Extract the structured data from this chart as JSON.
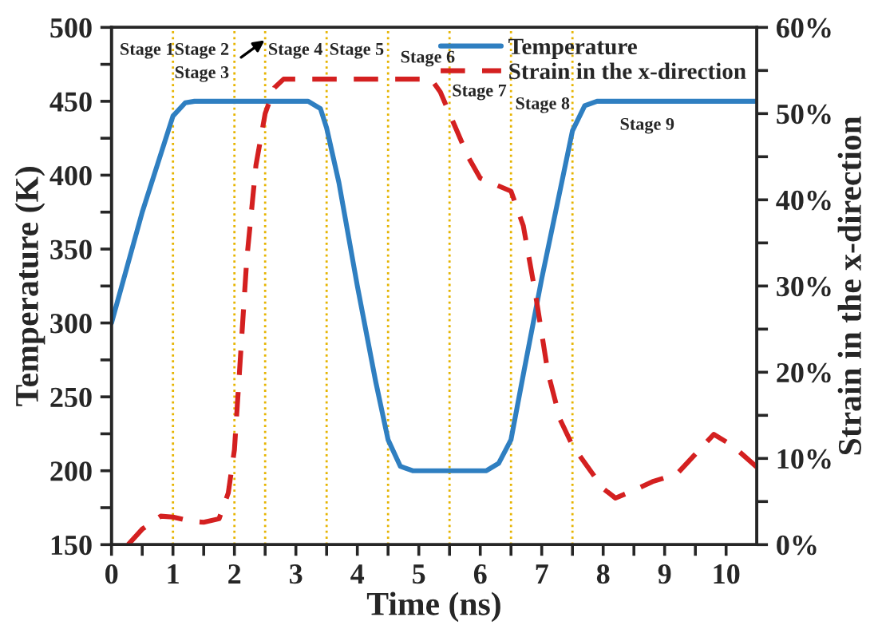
{
  "chart_data": {
    "type": "line",
    "xlabel": "Time (ns)",
    "ylabel": "Temperature (K)",
    "y2label": "Strain in the x-direction",
    "xlim": [
      0,
      10.5
    ],
    "xticks": [
      0,
      {
        "value": 0.5,
        "label": null
      },
      1,
      {
        "value": 1.5,
        "label": null
      },
      2,
      {
        "value": 2.5,
        "label": null
      },
      3,
      {
        "value": 3.5,
        "label": null
      },
      4,
      {
        "value": 4.5,
        "label": null
      },
      5,
      {
        "value": 5.5,
        "label": null
      },
      6,
      {
        "value": 6.5,
        "label": null
      },
      7,
      {
        "value": 7.5,
        "label": null
      },
      8,
      {
        "value": 8.5,
        "label": null
      },
      9,
      {
        "value": 9.5,
        "label": null
      },
      10
    ],
    "ylim": [
      150,
      500
    ],
    "yticks": [
      150,
      {
        "value": 175,
        "label": null
      },
      200,
      {
        "value": 225,
        "label": null
      },
      250,
      {
        "value": 275,
        "label": null
      },
      300,
      {
        "value": 325,
        "label": null
      },
      350,
      {
        "value": 375,
        "label": null
      },
      400,
      {
        "value": 425,
        "label": null
      },
      450,
      {
        "value": 475,
        "label": null
      },
      500
    ],
    "y2lim": [
      0,
      60
    ],
    "y2ticks": [
      {
        "value": 0,
        "label": "0%"
      },
      {
        "value": 5,
        "label": null
      },
      {
        "value": 10,
        "label": "10%"
      },
      {
        "value": 15,
        "label": null
      },
      {
        "value": 20,
        "label": "20%"
      },
      {
        "value": 25,
        "label": null
      },
      {
        "value": 30,
        "label": "30%"
      },
      {
        "value": 35,
        "label": null
      },
      {
        "value": 40,
        "label": "40%"
      },
      {
        "value": 45,
        "label": null
      },
      {
        "value": 50,
        "label": "50%"
      },
      {
        "value": 55,
        "label": null
      },
      {
        "value": 60,
        "label": "60%"
      }
    ],
    "legend": "top right",
    "grid": false,
    "series": [
      {
        "name": "Temperature",
        "color": "#2f7fc1",
        "line_style": "solid",
        "x": [
          0,
          0.5,
          1.0,
          1.2,
          1.35,
          3.2,
          3.4,
          3.5,
          3.7,
          4.0,
          4.3,
          4.5,
          4.7,
          4.9,
          6.1,
          6.3,
          6.5,
          6.7,
          7.0,
          7.5,
          7.7,
          7.9,
          10.5
        ],
        "values": [
          300,
          375,
          440,
          449,
          450,
          450,
          445,
          432,
          395,
          325,
          260,
          221,
          203,
          200,
          200,
          205,
          221,
          265,
          330,
          430,
          447,
          450,
          450
        ]
      },
      {
        "name": "Strain in the x-direction",
        "color": "#d42020",
        "line_style": "dashed",
        "axis": "y2",
        "x": [
          0.27,
          0.5,
          0.8,
          1.0,
          1.3,
          1.5,
          1.75,
          1.9,
          2.0,
          2.1,
          2.2,
          2.35,
          2.5,
          2.65,
          2.8,
          5.2,
          5.35,
          5.5,
          5.8,
          6.0,
          6.5,
          6.7,
          6.9,
          7.1,
          7.3,
          7.5,
          7.8,
          8.0,
          8.2,
          8.5,
          8.8,
          9.2,
          9.5,
          9.8,
          10.1,
          10.5
        ],
        "values": [
          0,
          1.8,
          3.3,
          3.2,
          2.7,
          2.6,
          3.0,
          6,
          11,
          22,
          33,
          44,
          50,
          53,
          54,
          54,
          52.5,
          50,
          45,
          42.5,
          41,
          37,
          29,
          20,
          14.5,
          11.5,
          8.5,
          6.5,
          5.4,
          6.3,
          7.3,
          8.2,
          10.5,
          12.8,
          11.5,
          9
        ]
      }
    ],
    "ref_lines": [
      {
        "axis": "x",
        "value": 1,
        "color": "#e6b400",
        "line_style": "dotted"
      },
      {
        "axis": "x",
        "value": 2,
        "color": "#e6b400",
        "line_style": "dotted"
      },
      {
        "axis": "x",
        "value": 2.5,
        "color": "#e6b400",
        "line_style": "dotted"
      },
      {
        "axis": "x",
        "value": 3.5,
        "color": "#e6b400",
        "line_style": "dotted"
      },
      {
        "axis": "x",
        "value": 4.5,
        "color": "#e6b400",
        "line_style": "dotted"
      },
      {
        "axis": "x",
        "value": 5.5,
        "color": "#e6b400",
        "line_style": "dotted"
      },
      {
        "axis": "x",
        "value": 6.5,
        "color": "#e6b400",
        "line_style": "dotted"
      },
      {
        "axis": "x",
        "value": 7.5,
        "color": "#e6b400",
        "line_style": "dotted"
      }
    ],
    "annotations": [
      "Stage 1",
      "Stage 2",
      "Stage 3",
      "Stage 4",
      "Stage 5",
      "Stage 6",
      "Stage 7",
      "Stage 8",
      "Stage 9"
    ]
  }
}
